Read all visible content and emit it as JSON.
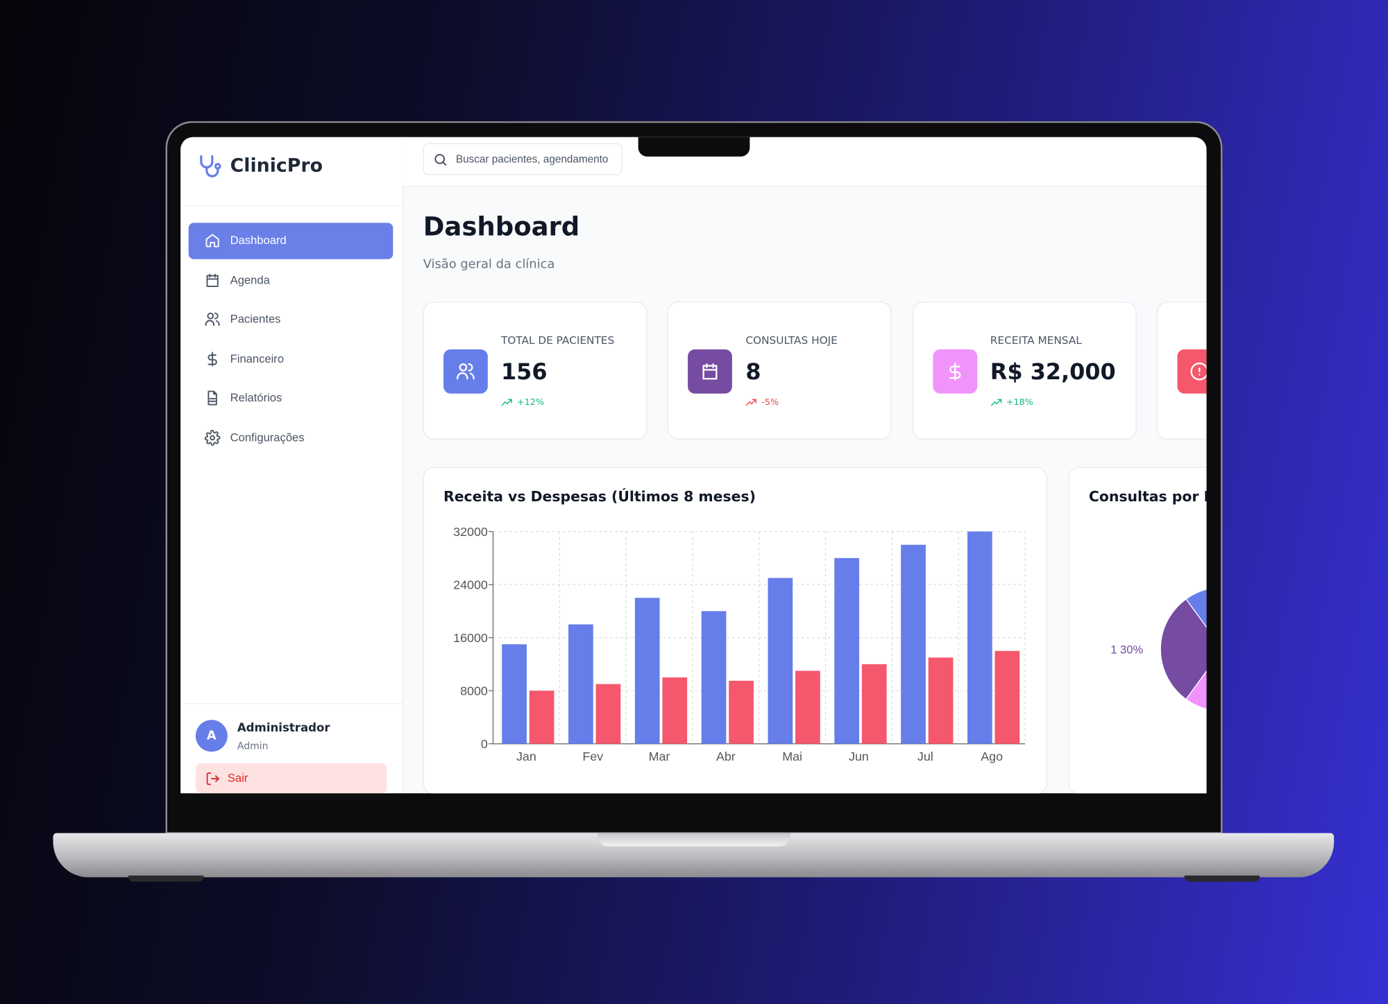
{
  "brand": "ClinicPro",
  "search_placeholder": "Buscar pacientes, agendamento",
  "nav": [
    {
      "label": "Dashboard",
      "active": true
    },
    {
      "label": "Agenda",
      "active": false
    },
    {
      "label": "Pacientes",
      "active": false
    },
    {
      "label": "Financeiro",
      "active": false
    },
    {
      "label": "Relatórios",
      "active": false
    },
    {
      "label": "Configurações",
      "active": false
    }
  ],
  "user": {
    "initial": "A",
    "name": "Administrador",
    "role": "Admin",
    "logout": "Sair"
  },
  "page": {
    "title": "Dashboard",
    "subtitle": "Visão geral da clínica"
  },
  "stats": [
    {
      "label": "TOTAL DE PACIENTES",
      "value": "156",
      "change": "+12%",
      "change_color": "#10b981",
      "color": "#667eea"
    },
    {
      "label": "CONSULTAS HOJE",
      "value": "8",
      "change": "-5%",
      "change_color": "#ef4444",
      "color": "#764ba2"
    },
    {
      "label": "RECEITA MENSAL",
      "value": "R$ 32,000",
      "change": "+18%",
      "change_color": "#10b981",
      "color": "#f093fb"
    },
    {
      "color": "#f5576c"
    }
  ],
  "revenue_chart": {
    "type": "bar",
    "title": "Receita vs Despesas (Últimos 8 meses)",
    "categories": [
      "Jan",
      "Fev",
      "Mar",
      "Abr",
      "Mai",
      "Jun",
      "Jul",
      "Ago"
    ],
    "series": [
      {
        "color": "#667eea",
        "values": [
          15000,
          18000,
          22000,
          20000,
          25000,
          28000,
          30000,
          32000
        ]
      },
      {
        "color": "#f5576c",
        "values": [
          8000,
          9000,
          10000,
          9500,
          11000,
          12000,
          13000,
          14000
        ]
      }
    ],
    "ylim": [
      0,
      32000
    ],
    "yticks": [
      0,
      8000,
      16000,
      24000,
      32000
    ],
    "grid": true
  },
  "specialty_chart": {
    "type": "pie",
    "title": "Consultas por Espe",
    "values": [
      10,
      30,
      8
    ],
    "value_labels": [
      null,
      "1 30%",
      null
    ],
    "colors": [
      "#667eea",
      "#764ba2",
      "#f093fb"
    ]
  }
}
